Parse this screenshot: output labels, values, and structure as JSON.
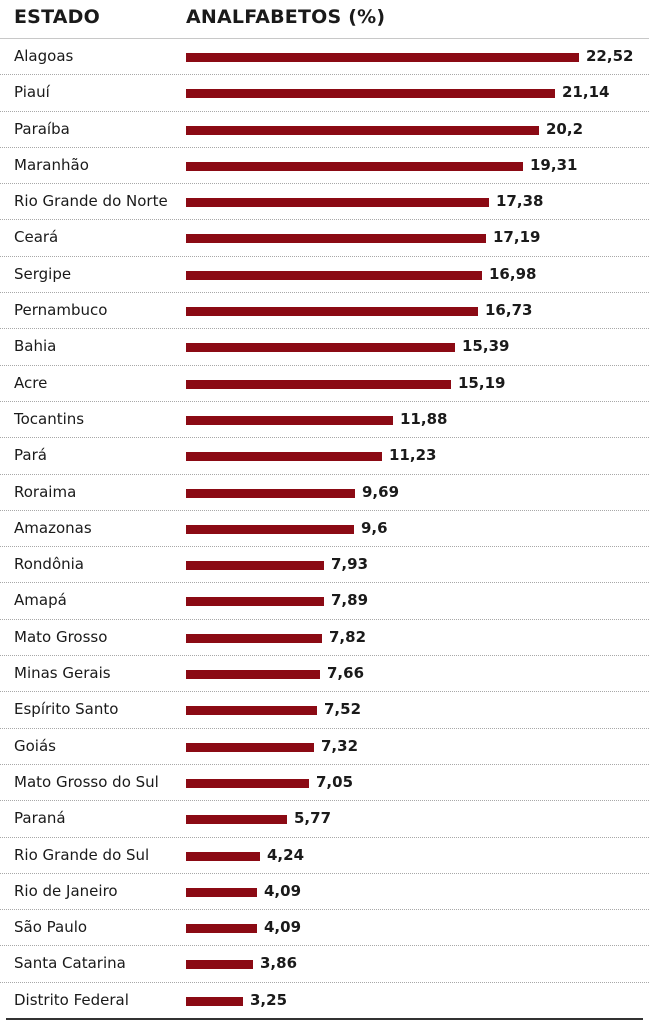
{
  "header": {
    "state_label": "ESTADO",
    "value_label": "ANALFABETOS (%)"
  },
  "colors": {
    "bar": "#8b0a14"
  },
  "chart_data": {
    "type": "bar",
    "orientation": "horizontal",
    "xlim": [
      0,
      22.52
    ],
    "categories": [
      "Alagoas",
      "Piauí",
      "Paraíba",
      "Maranhão",
      "Rio Grande do Norte",
      "Ceará",
      "Sergipe",
      "Pernambuco",
      "Bahia",
      "Acre",
      "Tocantins",
      "Pará",
      "Roraima",
      "Amazonas",
      "Rondônia",
      "Amapá",
      "Mato Grosso",
      "Minas Gerais",
      "Espírito Santo",
      "Goiás",
      "Mato Grosso do Sul",
      "Paraná",
      "Rio Grande do Sul",
      "Rio de Janeiro",
      "São Paulo",
      "Santa Catarina",
      "Distrito Federal"
    ],
    "values": [
      22.52,
      21.14,
      20.2,
      19.31,
      17.38,
      17.19,
      16.98,
      16.73,
      15.39,
      15.19,
      11.88,
      11.23,
      9.69,
      9.6,
      7.93,
      7.89,
      7.82,
      7.66,
      7.52,
      7.32,
      7.05,
      5.77,
      4.24,
      4.09,
      4.09,
      3.86,
      3.25
    ],
    "labels": [
      "22,52",
      "21,14",
      "20,2",
      "19,31",
      "17,38",
      "17,19",
      "16,98",
      "16,73",
      "15,39",
      "15,19",
      "11,88",
      "11,23",
      "9,69",
      "9,6",
      "7,93",
      "7,89",
      "7,82",
      "7,66",
      "7,52",
      "7,32",
      "7,05",
      "5,77",
      "4,24",
      "4,09",
      "4,09",
      "3,86",
      "3,25"
    ]
  }
}
